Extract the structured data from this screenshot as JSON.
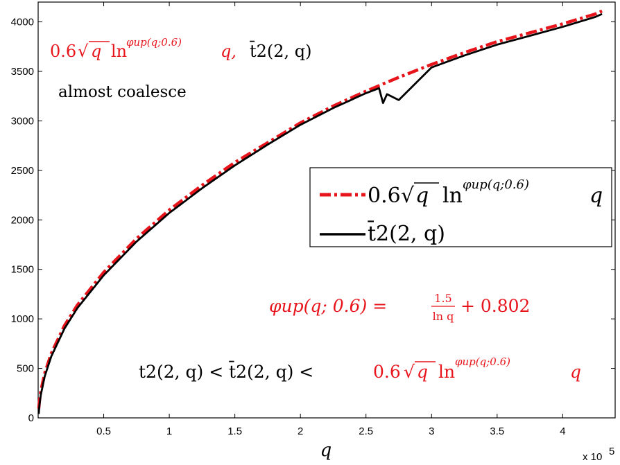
{
  "chart_data": {
    "type": "line",
    "xlabel": "q",
    "ylabel": "",
    "x_exponent_label": "x 10",
    "x_exponent_power": "5",
    "xlim": [
      0,
      440000
    ],
    "ylim": [
      0,
      4200
    ],
    "xticks": [
      50000,
      100000,
      150000,
      200000,
      250000,
      300000,
      350000,
      400000
    ],
    "xtick_labels": [
      "0.5",
      "1",
      "1.5",
      "2",
      "2.5",
      "3",
      "3.5",
      "4"
    ],
    "yticks": [
      0,
      500,
      1000,
      1500,
      2000,
      2500,
      3000,
      3500,
      4000
    ],
    "ytick_labels": [
      "0",
      "500",
      "1000",
      "1500",
      "2000",
      "2500",
      "3000",
      "3500",
      "4000"
    ],
    "grid": false,
    "legend_position": "right",
    "series": [
      {
        "name": "0.6√q ln^{φup(q;0.6)} q",
        "color": "#e8141b",
        "style": "dash-dot",
        "x": [
          500,
          1000,
          2000,
          5000,
          10000,
          20000,
          30000,
          50000,
          75000,
          100000,
          125000,
          150000,
          175000,
          200000,
          225000,
          250000,
          275000,
          300000,
          325000,
          350000,
          375000,
          400000,
          425000,
          430000
        ],
        "y": [
          95,
          170,
          270,
          450,
          650,
          930,
          1140,
          1470,
          1810,
          2100,
          2350,
          2580,
          2780,
          2980,
          3150,
          3300,
          3440,
          3570,
          3690,
          3800,
          3890,
          3980,
          4080,
          4110
        ]
      },
      {
        "name": "t̄2(2,q)",
        "color": "#000000",
        "style": "solid",
        "x": [
          500,
          1000,
          2000,
          5000,
          10000,
          20000,
          30000,
          50000,
          75000,
          100000,
          125000,
          150000,
          175000,
          200000,
          225000,
          250000,
          260000,
          263000,
          266000,
          275000,
          300000,
          325000,
          350000,
          375000,
          400000,
          425000,
          430000
        ],
        "y": [
          40,
          130,
          230,
          420,
          620,
          900,
          1110,
          1440,
          1780,
          2070,
          2320,
          2550,
          2760,
          2960,
          3130,
          3280,
          3330,
          3180,
          3270,
          3210,
          3540,
          3660,
          3770,
          3860,
          3950,
          4050,
          4080
        ]
      }
    ],
    "annotations": {
      "top_formula": {
        "a": "0.6",
        "b": "q",
        "c": "ln",
        "d": "φup(q;0.6)",
        "e": " q,",
        "f": "t̄2(2, q)"
      },
      "top_note": "almost coalesce",
      "phi_formula": {
        "lhs": "φup(q; 0.6) =",
        "num": "1.5",
        "den": "ln q",
        "rhs": "+ 0.802"
      },
      "bottom_formula": {
        "left": "t2(2, q) < t̄2(2, q) <",
        "a": "0.6",
        "b": "q",
        "c": "ln",
        "d": "φup(q;0.6)",
        "e": "q"
      }
    },
    "legend": [
      {
        "a": "0.6",
        "b": "q",
        "c": "ln",
        "d": "φup(q;0.6)",
        "e": "q"
      },
      {
        "label": "t̄2(2, q)"
      }
    ]
  }
}
